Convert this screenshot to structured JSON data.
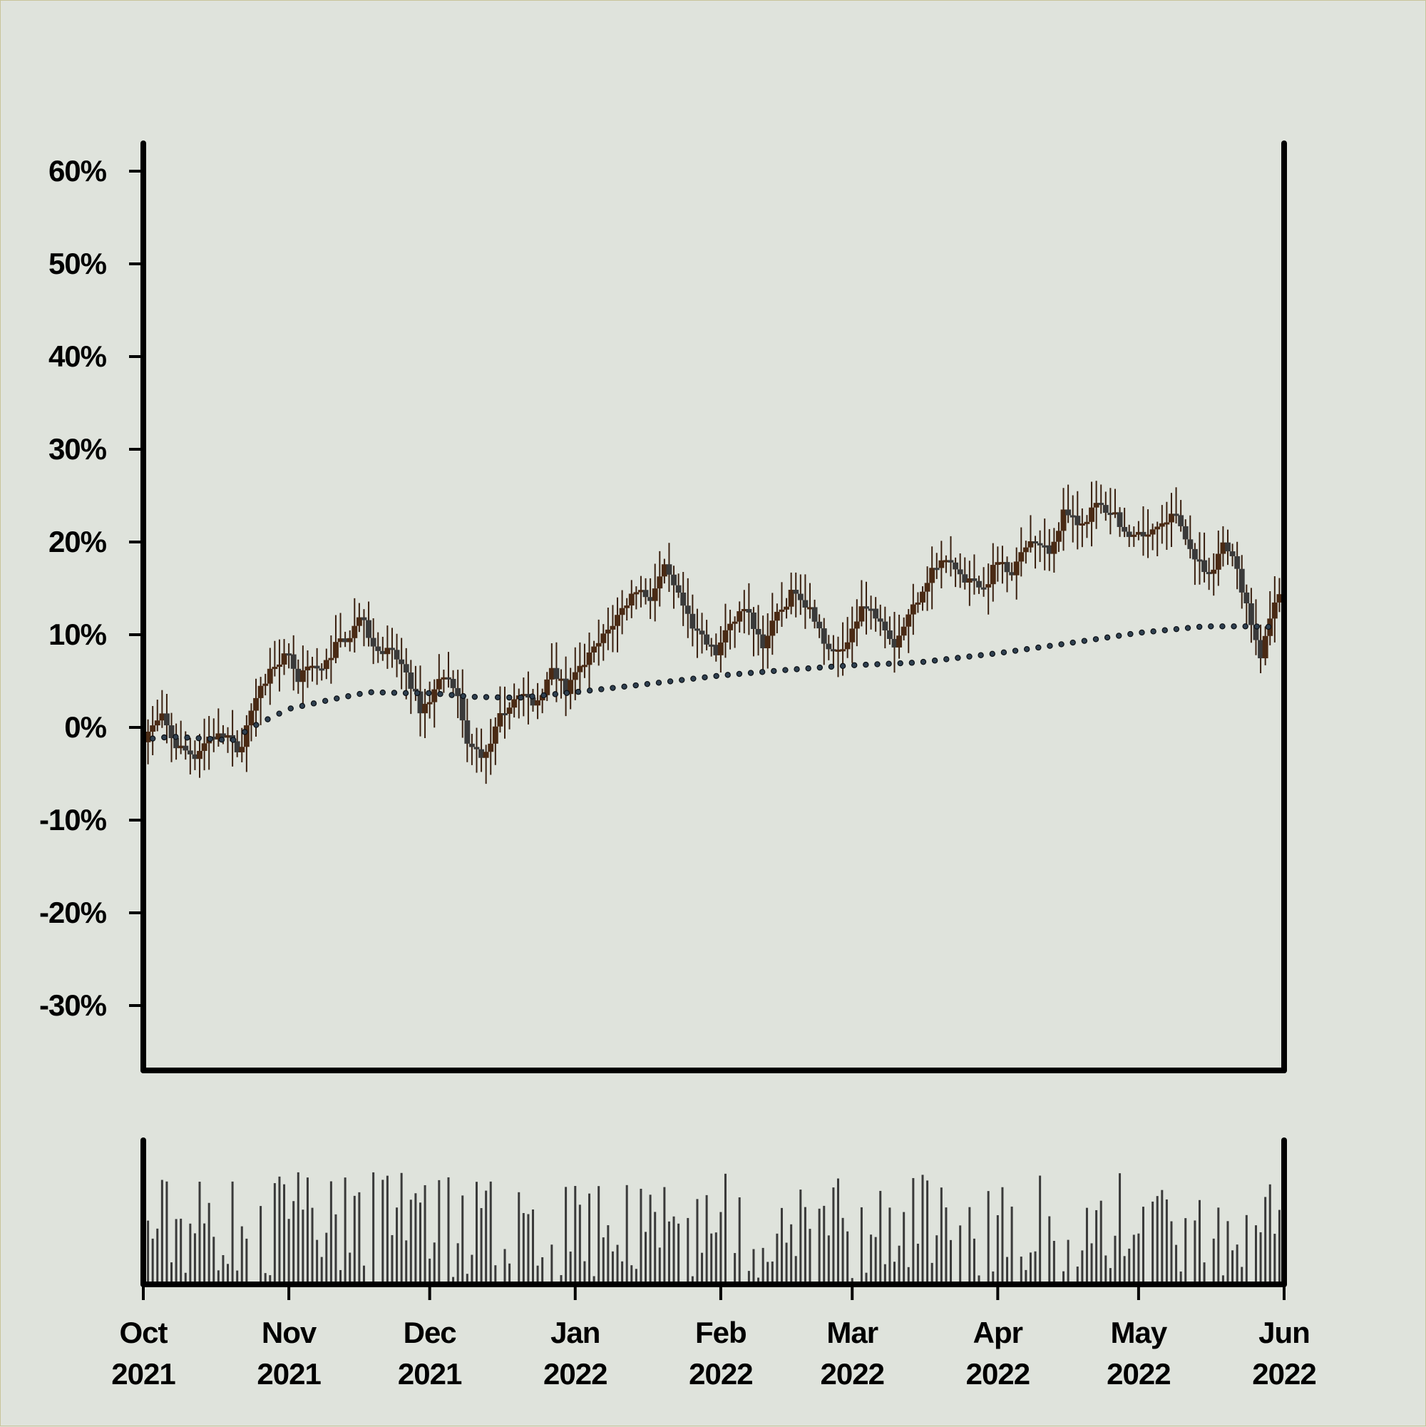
{
  "chart_data": {
    "type": "candlestick",
    "y_axis": {
      "format": "percent",
      "ylim": [
        -37,
        63
      ],
      "ticks": [
        60,
        50,
        40,
        30,
        20,
        10,
        0,
        -10,
        -20,
        -30
      ],
      "tick_labels": [
        "60%",
        "50%",
        "40%",
        "30%",
        "20%",
        "10%",
        "0%",
        "-10%",
        "-20%",
        "-30%"
      ]
    },
    "x_axis": {
      "range": [
        "2021-10-01",
        "2022-06-01"
      ],
      "ticks": [
        "2021-10-01",
        "2021-11-01",
        "2021-12-01",
        "2022-01-01",
        "2022-02-01",
        "2022-03-01",
        "2022-04-01",
        "2022-05-01",
        "2022-06-01"
      ],
      "tick_labels": [
        [
          "Oct",
          "2021"
        ],
        [
          "Nov",
          "2021"
        ],
        [
          "Dec",
          "2021"
        ],
        [
          "Jan",
          "2022"
        ],
        [
          "Feb",
          "2022"
        ],
        [
          "Mar",
          "2022"
        ],
        [
          "Apr",
          "2022"
        ],
        [
          "May",
          "2022"
        ],
        [
          "Jun",
          "2022"
        ]
      ]
    },
    "price_path": [
      [
        "2021-10-01",
        -1
      ],
      [
        "2021-10-05",
        1
      ],
      [
        "2021-10-08",
        -2
      ],
      [
        "2021-10-12",
        -3
      ],
      [
        "2021-10-15",
        -1
      ],
      [
        "2021-10-19",
        -1
      ],
      [
        "2021-10-21",
        -3
      ],
      [
        "2021-10-23",
        0
      ],
      [
        "2021-10-26",
        4
      ],
      [
        "2021-10-29",
        7
      ],
      [
        "2021-11-01",
        8
      ],
      [
        "2021-11-03",
        5
      ],
      [
        "2021-11-05",
        7
      ],
      [
        "2021-11-08",
        6
      ],
      [
        "2021-11-11",
        9
      ],
      [
        "2021-11-14",
        10
      ],
      [
        "2021-11-16",
        12
      ],
      [
        "2021-11-19",
        9
      ],
      [
        "2021-11-23",
        8
      ],
      [
        "2021-11-26",
        6
      ],
      [
        "2021-11-29",
        2
      ],
      [
        "2021-12-01",
        3
      ],
      [
        "2021-12-04",
        6
      ],
      [
        "2021-12-07",
        3
      ],
      [
        "2021-12-09",
        -2
      ],
      [
        "2021-12-13",
        -3
      ],
      [
        "2021-12-16",
        1
      ],
      [
        "2021-12-20",
        4
      ],
      [
        "2021-12-23",
        2
      ],
      [
        "2021-12-27",
        6
      ],
      [
        "2021-12-30",
        4
      ],
      [
        "2022-01-03",
        7
      ],
      [
        "2022-01-06",
        9
      ],
      [
        "2022-01-10",
        12
      ],
      [
        "2022-01-14",
        15
      ],
      [
        "2022-01-17",
        14
      ],
      [
        "2022-01-20",
        17
      ],
      [
        "2022-01-24",
        13
      ],
      [
        "2022-01-27",
        10
      ],
      [
        "2022-01-31",
        8
      ],
      [
        "2022-02-03",
        11
      ],
      [
        "2022-02-06",
        13
      ],
      [
        "2022-02-10",
        9
      ],
      [
        "2022-02-13",
        12
      ],
      [
        "2022-02-17",
        15
      ],
      [
        "2022-02-21",
        12
      ],
      [
        "2022-02-24",
        8
      ],
      [
        "2022-02-28",
        9
      ],
      [
        "2022-03-03",
        13
      ],
      [
        "2022-03-07",
        12
      ],
      [
        "2022-03-10",
        9
      ],
      [
        "2022-03-14",
        13
      ],
      [
        "2022-03-18",
        17
      ],
      [
        "2022-03-21",
        18
      ],
      [
        "2022-03-25",
        16
      ],
      [
        "2022-03-29",
        15
      ],
      [
        "2022-04-01",
        18
      ],
      [
        "2022-04-04",
        17
      ],
      [
        "2022-04-08",
        20
      ],
      [
        "2022-04-12",
        19
      ],
      [
        "2022-04-15",
        23
      ],
      [
        "2022-04-19",
        22
      ],
      [
        "2022-04-22",
        24
      ],
      [
        "2022-04-26",
        23
      ],
      [
        "2022-04-29",
        20
      ],
      [
        "2022-05-03",
        21
      ],
      [
        "2022-05-06",
        22
      ],
      [
        "2022-05-09",
        23
      ],
      [
        "2022-05-12",
        19
      ],
      [
        "2022-05-16",
        16
      ],
      [
        "2022-05-19",
        20
      ],
      [
        "2022-05-22",
        17
      ],
      [
        "2022-05-25",
        11
      ],
      [
        "2022-05-27",
        8
      ],
      [
        "2022-05-29",
        12
      ],
      [
        "2022-06-01",
        16
      ]
    ],
    "moving_average": [
      [
        "2021-10-01",
        -1.3
      ],
      [
        "2021-10-07",
        -1.0
      ],
      [
        "2021-10-14",
        -1.2
      ],
      [
        "2021-10-20",
        -1.4
      ],
      [
        "2021-10-24",
        0.0
      ],
      [
        "2021-11-01",
        2.0
      ],
      [
        "2021-11-10",
        3.0
      ],
      [
        "2021-11-18",
        3.8
      ],
      [
        "2021-11-26",
        3.7
      ],
      [
        "2021-12-01",
        3.7
      ],
      [
        "2021-12-10",
        3.3
      ],
      [
        "2021-12-20",
        3.2
      ],
      [
        "2022-01-01",
        3.8
      ],
      [
        "2022-01-15",
        4.6
      ],
      [
        "2022-02-01",
        5.6
      ],
      [
        "2022-02-15",
        6.2
      ],
      [
        "2022-03-01",
        6.7
      ],
      [
        "2022-03-15",
        7.0
      ],
      [
        "2022-04-01",
        8.0
      ],
      [
        "2022-04-15",
        9.0
      ],
      [
        "2022-05-01",
        10.2
      ],
      [
        "2022-05-15",
        10.9
      ],
      [
        "2022-05-25",
        10.9
      ],
      [
        "2022-06-01",
        10.8
      ]
    ],
    "volume": {
      "relative": true,
      "note_free": true
    },
    "colors": {
      "candle_body": "#3a3a3a",
      "candle_up": "#4a2a14",
      "wick": "#3a2010",
      "ma_dot": "#2f4050",
      "axis": "#000000",
      "background": "#dfe3dc"
    }
  }
}
